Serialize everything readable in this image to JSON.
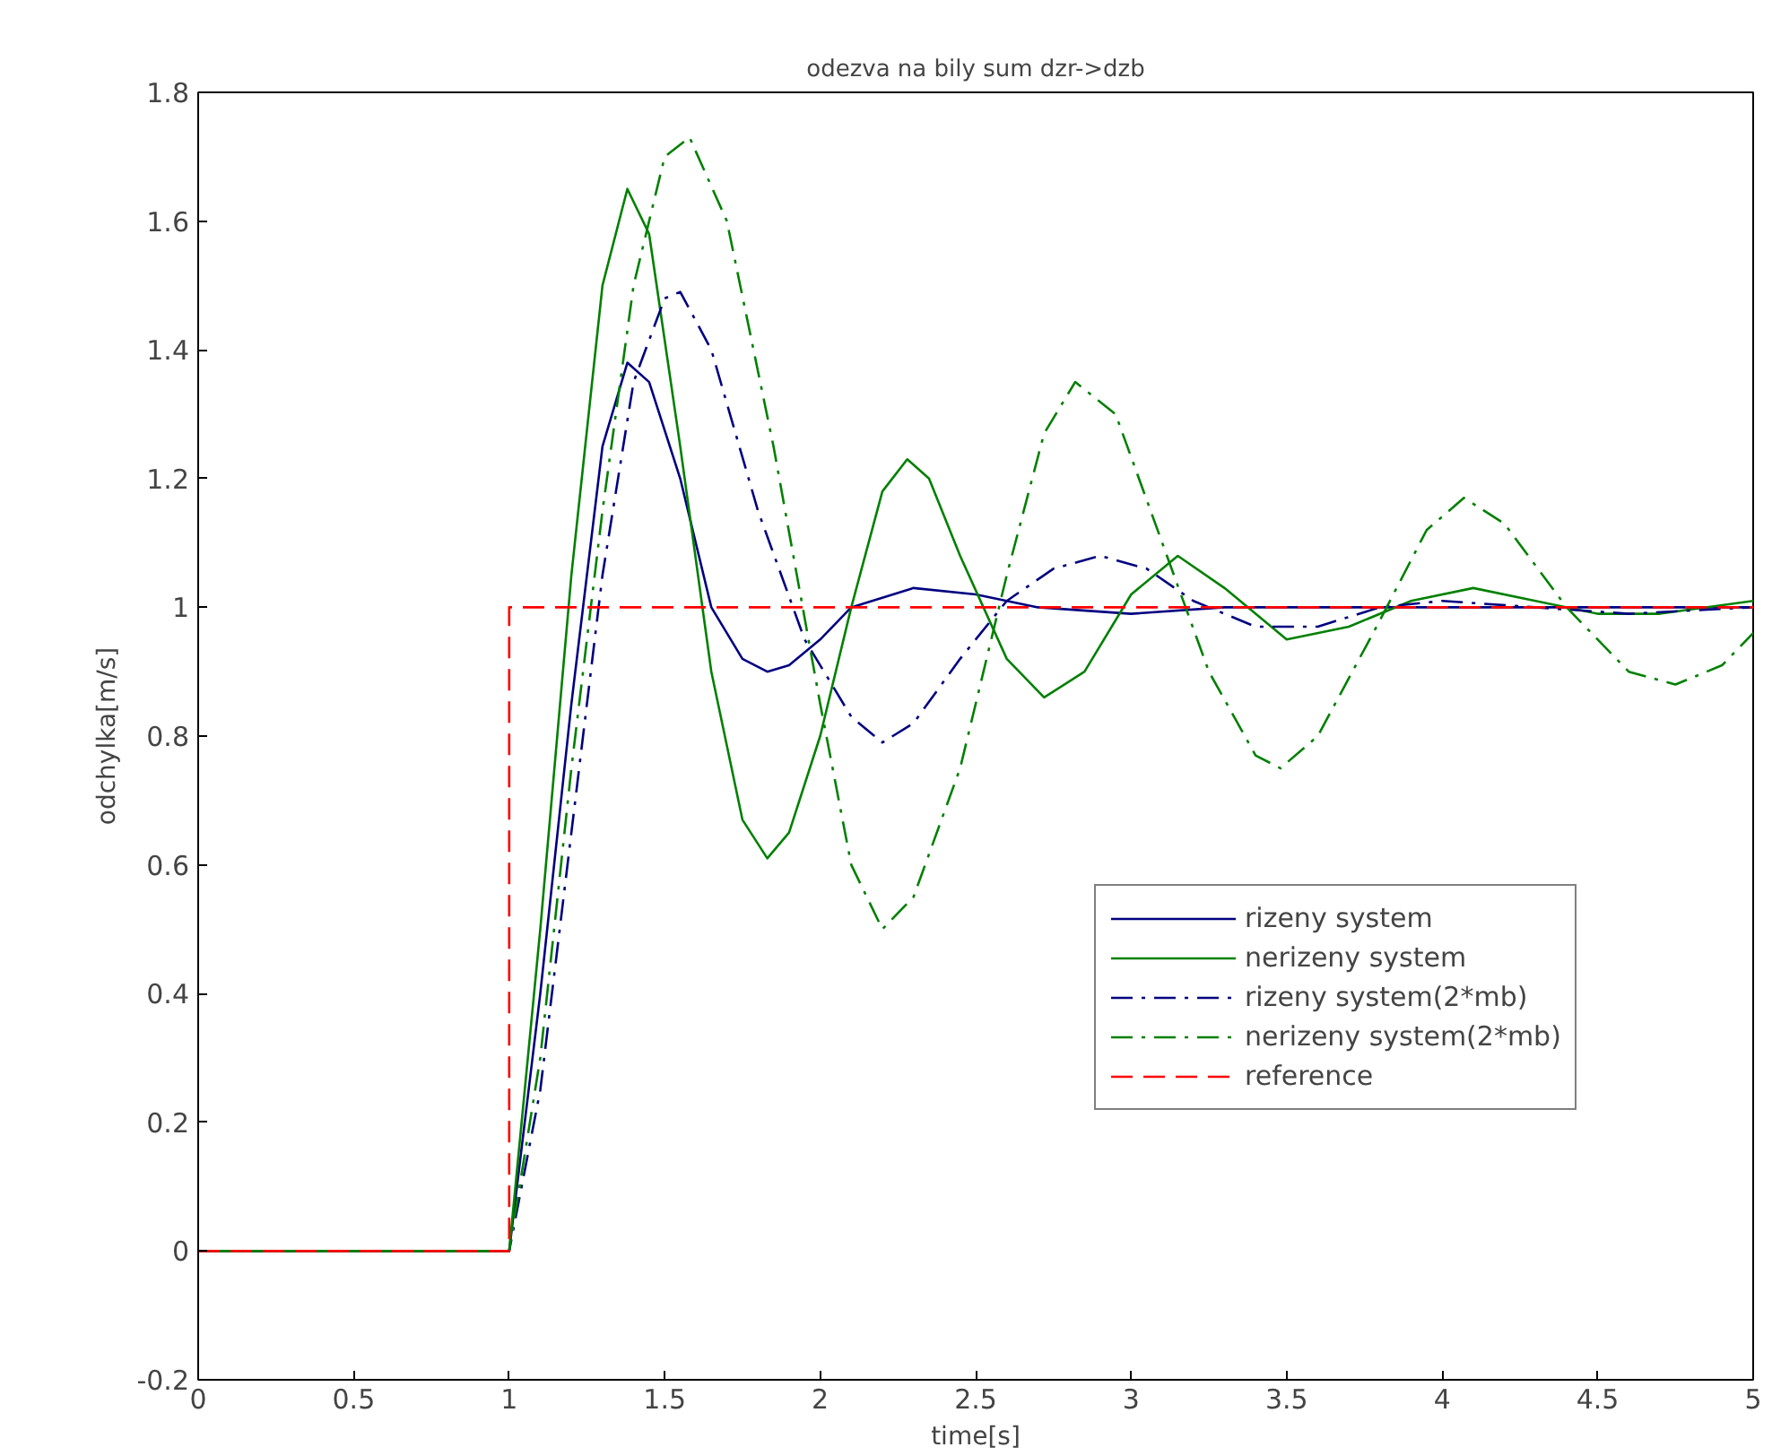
{
  "chart_data": {
    "type": "line",
    "title": "odezva na bily sum dzr->dzb",
    "xlabel": "time[s]",
    "ylabel": "odchylka[m/s]",
    "xlim": [
      0,
      5
    ],
    "ylim": [
      -0.2,
      1.8
    ],
    "xticks": [
      0,
      0.5,
      1,
      1.5,
      2,
      2.5,
      3,
      3.5,
      4,
      4.5,
      5
    ],
    "yticks": [
      -0.2,
      0,
      0.2,
      0.4,
      0.6,
      0.8,
      1,
      1.2,
      1.4,
      1.6,
      1.8
    ],
    "grid": false,
    "legend": "right",
    "marker": "none",
    "series": [
      {
        "name": "rizeny system",
        "color": "#000080",
        "line_style": "solid",
        "x": [
          0,
          1,
          1.1,
          1.2,
          1.3,
          1.38,
          1.45,
          1.55,
          1.65,
          1.75,
          1.83,
          1.9,
          2.0,
          2.1,
          2.3,
          2.5,
          2.7,
          3.0,
          3.3,
          4.0,
          5.0
        ],
        "values": [
          0,
          0,
          0.4,
          0.85,
          1.25,
          1.38,
          1.35,
          1.2,
          1.0,
          0.92,
          0.9,
          0.91,
          0.95,
          1.0,
          1.03,
          1.02,
          1.0,
          0.99,
          1.0,
          1.0,
          1.0
        ]
      },
      {
        "name": "nerizeny system",
        "color": "#008000",
        "line_style": "solid",
        "x": [
          0,
          1,
          1.1,
          1.2,
          1.3,
          1.38,
          1.45,
          1.55,
          1.65,
          1.75,
          1.83,
          1.9,
          2.0,
          2.1,
          2.2,
          2.28,
          2.35,
          2.45,
          2.6,
          2.72,
          2.85,
          3.0,
          3.15,
          3.3,
          3.5,
          3.7,
          3.9,
          4.1,
          4.3,
          4.5,
          4.7,
          5.0
        ],
        "values": [
          0,
          0,
          0.5,
          1.05,
          1.5,
          1.65,
          1.58,
          1.25,
          0.9,
          0.67,
          0.61,
          0.65,
          0.8,
          1.0,
          1.18,
          1.23,
          1.2,
          1.08,
          0.92,
          0.86,
          0.9,
          1.02,
          1.08,
          1.03,
          0.95,
          0.97,
          1.01,
          1.03,
          1.01,
          0.99,
          0.99,
          1.01
        ]
      },
      {
        "name": "rizeny system(2*mb)",
        "color": "#000080",
        "line_style": "dashdot",
        "x": [
          0,
          1,
          1.1,
          1.2,
          1.3,
          1.4,
          1.5,
          1.55,
          1.65,
          1.8,
          1.95,
          2.1,
          2.2,
          2.3,
          2.45,
          2.6,
          2.75,
          2.9,
          3.05,
          3.2,
          3.4,
          3.6,
          3.8,
          4.0,
          4.3,
          4.6,
          5.0
        ],
        "values": [
          0,
          0,
          0.25,
          0.65,
          1.05,
          1.35,
          1.48,
          1.49,
          1.4,
          1.15,
          0.95,
          0.83,
          0.79,
          0.82,
          0.92,
          1.01,
          1.06,
          1.08,
          1.06,
          1.01,
          0.97,
          0.97,
          1.0,
          1.01,
          1.0,
          0.99,
          1.0
        ]
      },
      {
        "name": "nerizeny system(2*mb)",
        "color": "#008000",
        "line_style": "dashdot",
        "x": [
          0,
          1,
          1.1,
          1.2,
          1.3,
          1.4,
          1.5,
          1.58,
          1.7,
          1.85,
          2.0,
          2.1,
          2.2,
          2.3,
          2.45,
          2.6,
          2.72,
          2.82,
          2.95,
          3.1,
          3.25,
          3.4,
          3.48,
          3.6,
          3.8,
          3.95,
          4.07,
          4.2,
          4.4,
          4.6,
          4.75,
          4.9,
          5.0
        ],
        "values": [
          0,
          0,
          0.3,
          0.75,
          1.15,
          1.5,
          1.7,
          1.73,
          1.6,
          1.25,
          0.85,
          0.6,
          0.5,
          0.55,
          0.75,
          1.05,
          1.27,
          1.35,
          1.3,
          1.1,
          0.9,
          0.77,
          0.75,
          0.8,
          0.98,
          1.12,
          1.17,
          1.13,
          1.0,
          0.9,
          0.88,
          0.91,
          0.96
        ]
      },
      {
        "name": "reference",
        "color": "#ff0000",
        "line_style": "dashed",
        "x": [
          0,
          1,
          1,
          5
        ],
        "values": [
          0,
          0,
          1,
          1
        ]
      }
    ]
  }
}
